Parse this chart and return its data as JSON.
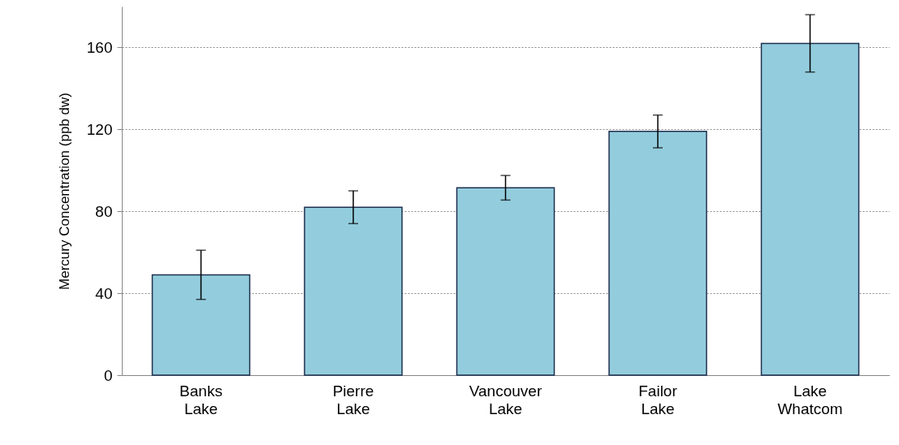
{
  "chart_data": {
    "type": "bar",
    "ylabel": "Mercury Concentration (ppb dw)",
    "categories": [
      "Banks Lake",
      "Pierre Lake",
      "Vancouver Lake",
      "Failor Lake",
      "Lake Whatcom"
    ],
    "values": [
      49,
      82,
      91.5,
      119,
      162
    ],
    "errors": [
      12,
      8,
      6,
      8,
      14
    ],
    "color": "#93cddd",
    "ylim": [
      0,
      180
    ],
    "yticks": [
      0,
      40,
      80,
      120,
      160
    ],
    "grid": "y"
  }
}
